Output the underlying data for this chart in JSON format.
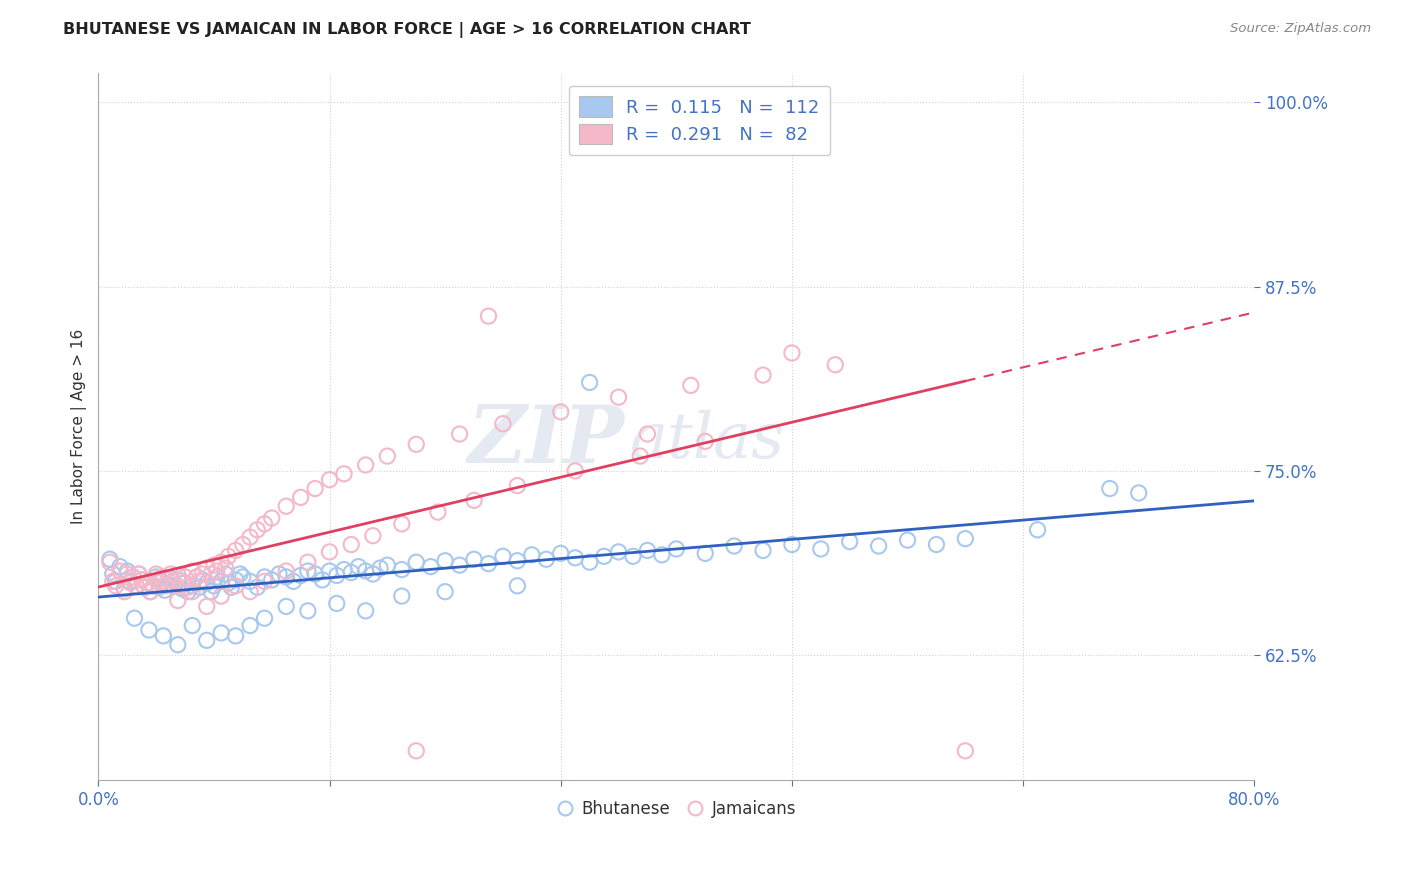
{
  "title": "BHUTANESE VS JAMAICAN IN LABOR FORCE | AGE > 16 CORRELATION CHART",
  "source": "Source: ZipAtlas.com",
  "xlabel": "",
  "ylabel": "In Labor Force | Age > 16",
  "xlim": [
    0.0,
    0.8
  ],
  "ylim": [
    0.54,
    1.02
  ],
  "yticks": [
    0.625,
    0.75,
    0.875,
    1.0
  ],
  "ytick_labels": [
    "62.5%",
    "75.0%",
    "87.5%",
    "100.0%"
  ],
  "xticks": [
    0.0,
    0.16,
    0.32,
    0.48,
    0.64,
    0.8
  ],
  "xtick_labels": [
    "0.0%",
    "",
    "",
    "",
    "",
    "80.0%"
  ],
  "watermark_zip": "ZIP",
  "watermark_atlas": "atlas",
  "legend_R_blue": "0.115",
  "legend_N_blue": "112",
  "legend_R_pink": "0.291",
  "legend_N_pink": "82",
  "blue_color": "#a8c8f0",
  "pink_color": "#f5b8c8",
  "line_blue": "#3060c0",
  "line_pink": "#e04060",
  "label_color": "#4472c4",
  "tick_color": "#4472c4",
  "background_color": "#ffffff",
  "blue_scatter_x": [
    0.008,
    0.01,
    0.012,
    0.015,
    0.018,
    0.02,
    0.022,
    0.024,
    0.026,
    0.028,
    0.03,
    0.032,
    0.034,
    0.036,
    0.038,
    0.04,
    0.042,
    0.044,
    0.046,
    0.048,
    0.05,
    0.052,
    0.055,
    0.058,
    0.06,
    0.062,
    0.065,
    0.068,
    0.07,
    0.072,
    0.075,
    0.078,
    0.08,
    0.082,
    0.085,
    0.088,
    0.09,
    0.092,
    0.095,
    0.098,
    0.1,
    0.105,
    0.11,
    0.115,
    0.12,
    0.125,
    0.13,
    0.135,
    0.14,
    0.145,
    0.15,
    0.155,
    0.16,
    0.165,
    0.17,
    0.175,
    0.18,
    0.185,
    0.19,
    0.195,
    0.2,
    0.21,
    0.22,
    0.23,
    0.24,
    0.25,
    0.26,
    0.27,
    0.28,
    0.29,
    0.3,
    0.31,
    0.32,
    0.33,
    0.34,
    0.35,
    0.36,
    0.37,
    0.38,
    0.39,
    0.4,
    0.42,
    0.44,
    0.46,
    0.48,
    0.5,
    0.52,
    0.54,
    0.56,
    0.58,
    0.6,
    0.65,
    0.7,
    0.72,
    0.025,
    0.035,
    0.045,
    0.055,
    0.065,
    0.075,
    0.085,
    0.095,
    0.105,
    0.115,
    0.13,
    0.145,
    0.165,
    0.185,
    0.21,
    0.24,
    0.29,
    0.34
  ],
  "blue_scatter_y": [
    0.69,
    0.68,
    0.675,
    0.685,
    0.67,
    0.682,
    0.675,
    0.678,
    0.672,
    0.68,
    0.676,
    0.671,
    0.674,
    0.668,
    0.672,
    0.678,
    0.671,
    0.675,
    0.669,
    0.673,
    0.677,
    0.672,
    0.676,
    0.67,
    0.674,
    0.668,
    0.672,
    0.678,
    0.671,
    0.676,
    0.674,
    0.668,
    0.672,
    0.678,
    0.675,
    0.68,
    0.674,
    0.671,
    0.676,
    0.68,
    0.678,
    0.675,
    0.671,
    0.678,
    0.676,
    0.68,
    0.678,
    0.675,
    0.679,
    0.682,
    0.68,
    0.676,
    0.682,
    0.679,
    0.683,
    0.681,
    0.685,
    0.682,
    0.68,
    0.684,
    0.686,
    0.683,
    0.688,
    0.685,
    0.689,
    0.686,
    0.69,
    0.687,
    0.692,
    0.689,
    0.693,
    0.69,
    0.694,
    0.691,
    0.688,
    0.692,
    0.695,
    0.692,
    0.696,
    0.693,
    0.697,
    0.694,
    0.699,
    0.696,
    0.7,
    0.697,
    0.702,
    0.699,
    0.703,
    0.7,
    0.704,
    0.71,
    0.738,
    0.735,
    0.65,
    0.642,
    0.638,
    0.632,
    0.645,
    0.635,
    0.64,
    0.638,
    0.645,
    0.65,
    0.658,
    0.655,
    0.66,
    0.655,
    0.665,
    0.668,
    0.672,
    0.81
  ],
  "pink_scatter_x": [
    0.008,
    0.01,
    0.012,
    0.015,
    0.018,
    0.02,
    0.022,
    0.024,
    0.026,
    0.028,
    0.03,
    0.032,
    0.034,
    0.036,
    0.038,
    0.04,
    0.042,
    0.044,
    0.046,
    0.048,
    0.05,
    0.052,
    0.055,
    0.058,
    0.06,
    0.062,
    0.065,
    0.068,
    0.07,
    0.072,
    0.075,
    0.078,
    0.08,
    0.082,
    0.085,
    0.088,
    0.09,
    0.095,
    0.1,
    0.105,
    0.11,
    0.115,
    0.12,
    0.13,
    0.14,
    0.15,
    0.16,
    0.17,
    0.185,
    0.2,
    0.22,
    0.25,
    0.28,
    0.32,
    0.36,
    0.41,
    0.46,
    0.51,
    0.055,
    0.065,
    0.075,
    0.085,
    0.095,
    0.105,
    0.115,
    0.13,
    0.145,
    0.16,
    0.175,
    0.19,
    0.21,
    0.235,
    0.26,
    0.29,
    0.33,
    0.375,
    0.42,
    0.38,
    0.27,
    0.22,
    0.48,
    0.6
  ],
  "pink_scatter_y": [
    0.688,
    0.675,
    0.672,
    0.682,
    0.668,
    0.68,
    0.674,
    0.678,
    0.672,
    0.68,
    0.676,
    0.671,
    0.674,
    0.668,
    0.672,
    0.68,
    0.674,
    0.678,
    0.672,
    0.676,
    0.68,
    0.675,
    0.679,
    0.674,
    0.678,
    0.671,
    0.682,
    0.678,
    0.675,
    0.68,
    0.684,
    0.68,
    0.686,
    0.682,
    0.688,
    0.684,
    0.692,
    0.696,
    0.7,
    0.705,
    0.71,
    0.714,
    0.718,
    0.726,
    0.732,
    0.738,
    0.744,
    0.748,
    0.754,
    0.76,
    0.768,
    0.775,
    0.782,
    0.79,
    0.8,
    0.808,
    0.815,
    0.822,
    0.662,
    0.668,
    0.658,
    0.665,
    0.672,
    0.668,
    0.675,
    0.682,
    0.688,
    0.695,
    0.7,
    0.706,
    0.714,
    0.722,
    0.73,
    0.74,
    0.75,
    0.76,
    0.77,
    0.775,
    0.855,
    0.56,
    0.83,
    0.56
  ]
}
